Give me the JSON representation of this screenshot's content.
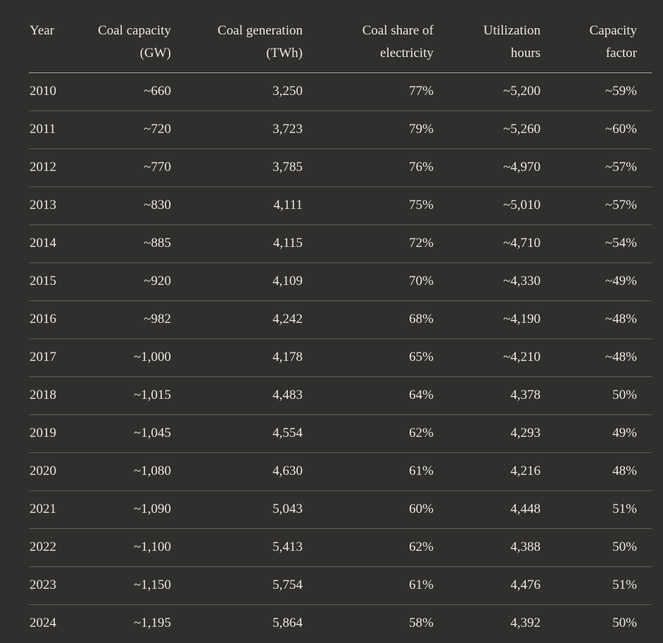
{
  "table": {
    "header": [
      [
        "Year"
      ],
      [
        "Coal capacity",
        "(GW)"
      ],
      [
        "Coal generation",
        "(TWh)"
      ],
      [
        "Coal share of",
        "electricity"
      ],
      [
        "Utilization",
        "hours"
      ],
      [
        "Capacity",
        "factor"
      ]
    ],
    "rows": [
      [
        "2010",
        "~660",
        "3,250",
        "77%",
        "~5,200",
        "~59%"
      ],
      [
        "2011",
        "~720",
        "3,723",
        "79%",
        "~5,260",
        "~60%"
      ],
      [
        "2012",
        "~770",
        "3,785",
        "76%",
        "~4,970",
        "~57%"
      ],
      [
        "2013",
        "~830",
        "4,111",
        "75%",
        "~5,010",
        "~57%"
      ],
      [
        "2014",
        "~885",
        "4,115",
        "72%",
        "~4,710",
        "~54%"
      ],
      [
        "2015",
        "~920",
        "4,109",
        "70%",
        "~4,330",
        "~49%"
      ],
      [
        "2016",
        "~982",
        "4,242",
        "68%",
        "~4,190",
        "~48%"
      ],
      [
        "2017",
        "~1,000",
        "4,178",
        "65%",
        "~4,210",
        "~48%"
      ],
      [
        "2018",
        "~1,015",
        "4,483",
        "64%",
        "4,378",
        "50%"
      ],
      [
        "2019",
        "~1,045",
        "4,554",
        "62%",
        "4,293",
        "49%"
      ],
      [
        "2020",
        "~1,080",
        "4,630",
        "61%",
        "4,216",
        "48%"
      ],
      [
        "2021",
        "~1,090",
        "5,043",
        "60%",
        "4,448",
        "51%"
      ],
      [
        "2022",
        "~1,100",
        "5,413",
        "62%",
        "4,388",
        "50%"
      ],
      [
        "2023",
        "~1,150",
        "5,754",
        "61%",
        "4,476",
        "51%"
      ],
      [
        "2024",
        "~1,195",
        "5,864",
        "58%",
        "4,392",
        "50%"
      ]
    ]
  }
}
